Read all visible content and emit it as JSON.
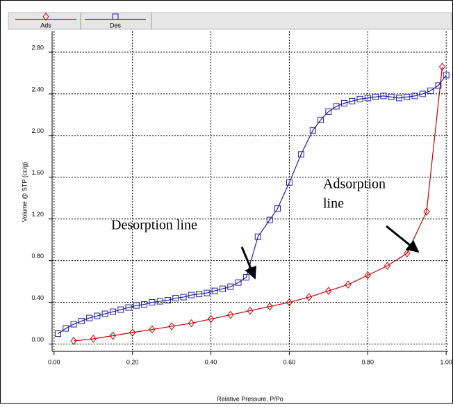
{
  "chart_data": {
    "type": "line",
    "x_label": "Relative Pressure, P/Po",
    "y_label": "Volume @ STP (cc/g)",
    "xlim": [
      -0.005,
      1.005
    ],
    "ylim": [
      -0.07,
      3.0
    ],
    "xticks": [
      {
        "value": 0,
        "label": "0.00"
      },
      {
        "value": 0.2,
        "label": "0.20"
      },
      {
        "value": 0.4,
        "label": "0.40"
      },
      {
        "value": 0.6,
        "label": "0.60"
      },
      {
        "value": 0.8,
        "label": "0.80"
      },
      {
        "value": 1,
        "label": "1.00"
      }
    ],
    "yticks": [
      {
        "value": 0,
        "label": "0.00"
      },
      {
        "value": 0.4,
        "label": "0.40"
      },
      {
        "value": 0.8,
        "label": "0.80"
      },
      {
        "value": 1.2,
        "label": "1.20"
      },
      {
        "value": 1.6,
        "label": "1.60"
      },
      {
        "value": 2.0,
        "label": "2.00"
      },
      {
        "value": 2.4,
        "label": "2.40"
      },
      {
        "value": 2.8,
        "label": "2.80"
      }
    ],
    "grid": true,
    "series": [
      {
        "name": "Ads",
        "color": "#c00000",
        "marker": "diamond",
        "x": [
          0.05,
          0.1,
          0.15,
          0.2,
          0.25,
          0.3,
          0.35,
          0.4,
          0.45,
          0.5,
          0.55,
          0.6,
          0.65,
          0.7,
          0.75,
          0.8,
          0.85,
          0.9,
          0.95,
          0.99
        ],
        "values": [
          0.03,
          0.05,
          0.08,
          0.11,
          0.14,
          0.17,
          0.2,
          0.24,
          0.28,
          0.32,
          0.36,
          0.4,
          0.45,
          0.51,
          0.57,
          0.66,
          0.75,
          0.87,
          1.27,
          2.66
        ]
      },
      {
        "name": "Des",
        "color": "#1f1fa0",
        "marker": "square",
        "x": [
          0.01,
          0.03,
          0.05,
          0.07,
          0.09,
          0.11,
          0.13,
          0.15,
          0.17,
          0.19,
          0.21,
          0.23,
          0.25,
          0.27,
          0.29,
          0.31,
          0.33,
          0.35,
          0.37,
          0.39,
          0.41,
          0.43,
          0.45,
          0.47,
          0.49,
          0.52,
          0.55,
          0.57,
          0.6,
          0.63,
          0.66,
          0.68,
          0.7,
          0.72,
          0.74,
          0.76,
          0.78,
          0.8,
          0.82,
          0.84,
          0.86,
          0.88,
          0.9,
          0.92,
          0.94,
          0.96,
          0.98,
          1.0
        ],
        "values": [
          0.1,
          0.15,
          0.19,
          0.22,
          0.25,
          0.27,
          0.29,
          0.31,
          0.33,
          0.35,
          0.37,
          0.38,
          0.4,
          0.41,
          0.42,
          0.44,
          0.45,
          0.47,
          0.48,
          0.49,
          0.51,
          0.53,
          0.55,
          0.59,
          0.64,
          1.03,
          1.19,
          1.3,
          1.55,
          1.82,
          2.05,
          2.15,
          2.23,
          2.28,
          2.31,
          2.33,
          2.35,
          2.36,
          2.37,
          2.38,
          2.37,
          2.36,
          2.37,
          2.38,
          2.4,
          2.43,
          2.48,
          2.58
        ]
      }
    ],
    "annotations": [
      {
        "lines": [
          "Desorption line"
        ]
      },
      {
        "lines": [
          "Adsorption",
          "line"
        ]
      }
    ]
  }
}
